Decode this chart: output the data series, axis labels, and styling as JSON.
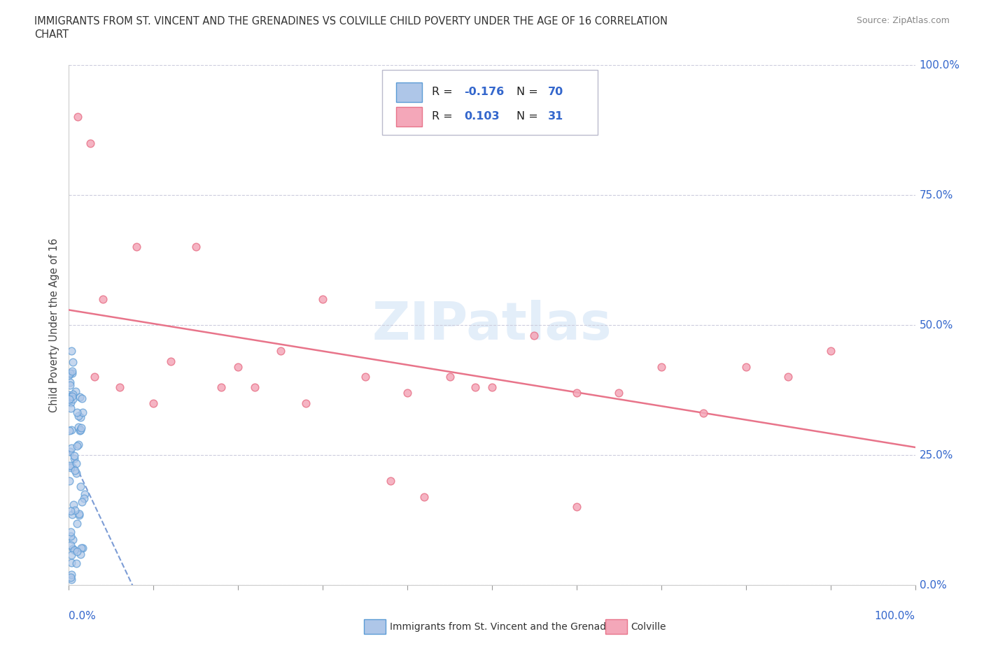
{
  "title_line1": "IMMIGRANTS FROM ST. VINCENT AND THE GRENADINES VS COLVILLE CHILD POVERTY UNDER THE AGE OF 16 CORRELATION",
  "title_line2": "CHART",
  "source": "Source: ZipAtlas.com",
  "ylabel": "Child Poverty Under the Age of 16",
  "ytick_labels": [
    "0.0%",
    "25.0%",
    "50.0%",
    "75.0%",
    "100.0%"
  ],
  "ytick_values": [
    0,
    25,
    50,
    75,
    100
  ],
  "xtick_left": "0.0%",
  "xtick_right": "100.0%",
  "xlim": [
    0,
    100
  ],
  "ylim": [
    0,
    100
  ],
  "watermark": "ZIPatlas",
  "legend_r1": "R = -0.176",
  "legend_n1": "N = 70",
  "legend_r2": "R =  0.103",
  "legend_n2": "N =  31",
  "blue_fill": "#aec6e8",
  "blue_edge": "#5b9bd5",
  "pink_fill": "#f4a7b9",
  "pink_edge": "#e8748a",
  "trend_blue_color": "#4472c4",
  "trend_pink_color": "#e8748a",
  "pink_scatter_x": [
    1.0,
    2.5,
    3.0,
    4.0,
    6.0,
    8.0,
    10.0,
    12.0,
    15.0,
    18.0,
    20.0,
    22.0,
    25.0,
    28.0,
    30.0,
    35.0,
    40.0,
    45.0,
    48.0,
    50.0,
    55.0,
    60.0,
    65.0,
    70.0,
    75.0,
    80.0,
    85.0,
    90.0,
    38.0,
    42.0,
    60.0
  ],
  "pink_scatter_y": [
    90.0,
    85.0,
    40.0,
    55.0,
    38.0,
    65.0,
    35.0,
    43.0,
    65.0,
    38.0,
    42.0,
    38.0,
    45.0,
    35.0,
    55.0,
    40.0,
    37.0,
    40.0,
    38.0,
    38.0,
    48.0,
    37.0,
    37.0,
    42.0,
    33.0,
    42.0,
    40.0,
    45.0,
    20.0,
    17.0,
    15.0
  ],
  "blue_marker_size": 60,
  "pink_marker_size": 60
}
